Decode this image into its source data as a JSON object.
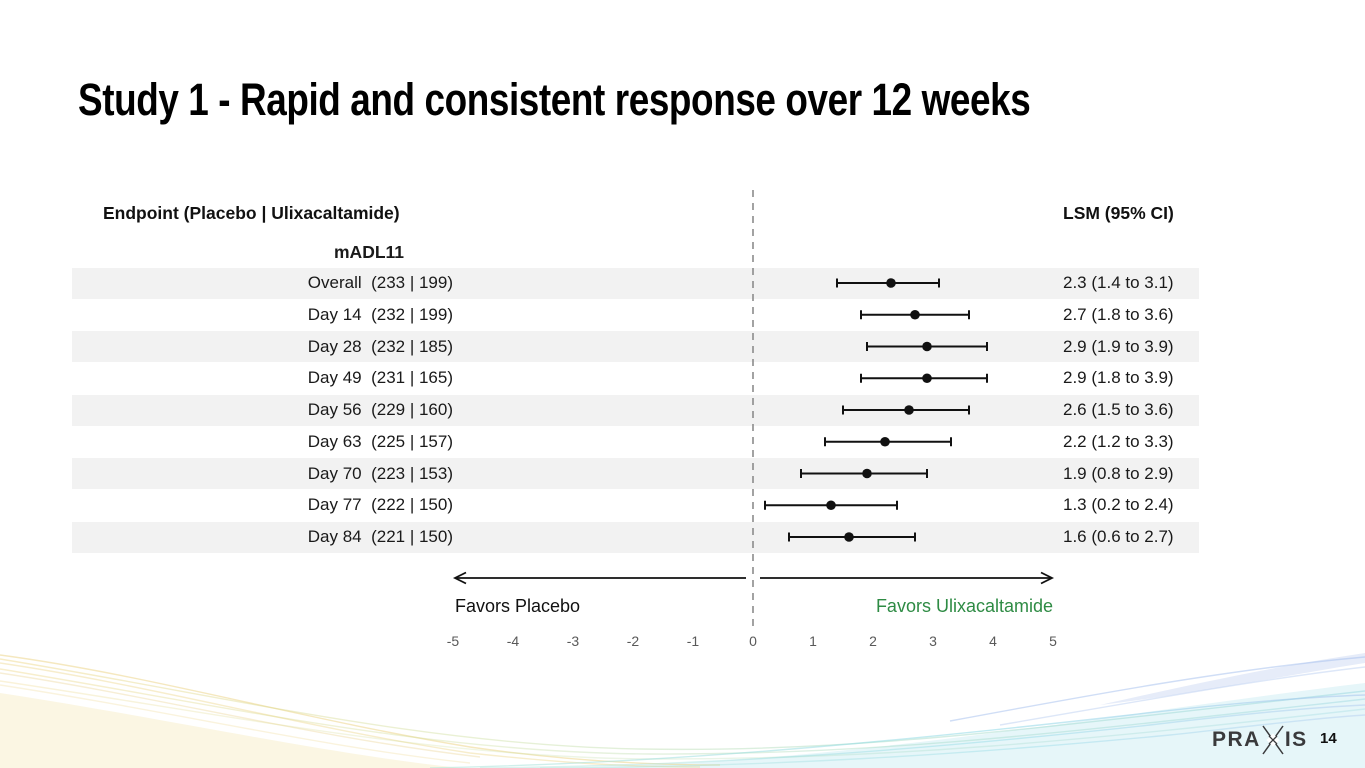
{
  "slide": {
    "title": "Study 1 - Rapid and consistent response over 12 weeks",
    "page_number": "14",
    "logo": {
      "left": "PRA",
      "right": "IS"
    }
  },
  "chart_data": {
    "type": "forest",
    "title": "Study 1 - Rapid and consistent response over 12 weeks",
    "left_header": "Endpoint (Placebo | Ulixacaltamide)",
    "right_header": "LSM (95% CI)",
    "group_label": "mADL11",
    "rows": [
      {
        "label": "Overall",
        "counts": "(233 | 199)",
        "lsm": 2.3,
        "ci_low": 1.4,
        "ci_high": 3.1,
        "ci_text": "2.3 (1.4 to 3.1)"
      },
      {
        "label": "Day 14",
        "counts": "(232 | 199)",
        "lsm": 2.7,
        "ci_low": 1.8,
        "ci_high": 3.6,
        "ci_text": "2.7 (1.8 to 3.6)"
      },
      {
        "label": "Day 28",
        "counts": "(232 | 185)",
        "lsm": 2.9,
        "ci_low": 1.9,
        "ci_high": 3.9,
        "ci_text": "2.9 (1.9 to 3.9)"
      },
      {
        "label": "Day 49",
        "counts": "(231 | 165)",
        "lsm": 2.9,
        "ci_low": 1.8,
        "ci_high": 3.9,
        "ci_text": "2.9 (1.8 to 3.9)"
      },
      {
        "label": "Day 56",
        "counts": "(229 | 160)",
        "lsm": 2.6,
        "ci_low": 1.5,
        "ci_high": 3.6,
        "ci_text": "2.6 (1.5 to 3.6)"
      },
      {
        "label": "Day 63",
        "counts": "(225 | 157)",
        "lsm": 2.2,
        "ci_low": 1.2,
        "ci_high": 3.3,
        "ci_text": "2.2 (1.2 to 3.3)"
      },
      {
        "label": "Day 70",
        "counts": "(223 | 153)",
        "lsm": 1.9,
        "ci_low": 0.8,
        "ci_high": 2.9,
        "ci_text": "1.9 (0.8 to 2.9)"
      },
      {
        "label": "Day 77",
        "counts": "(222 | 150)",
        "lsm": 1.3,
        "ci_low": 0.2,
        "ci_high": 2.4,
        "ci_text": "1.3 (0.2 to 2.4)"
      },
      {
        "label": "Day 84",
        "counts": "(221 | 150)",
        "lsm": 1.6,
        "ci_low": 0.6,
        "ci_high": 2.7,
        "ci_text": "1.6 (0.6 to 2.7)"
      }
    ],
    "axis": {
      "min": -5,
      "max": 5,
      "ticks": [
        -5,
        -4,
        -3,
        -2,
        -1,
        0,
        1,
        2,
        3,
        4,
        5
      ],
      "reference_line": 0,
      "grid": false
    },
    "favors_left_label": "Favors Placebo",
    "favors_right_label": "Favors Ulixacaltamide",
    "favors_right_color": "#2e8b44",
    "marker_color": "#111111",
    "band_color": "#f2f2f2",
    "tick_color": "#595959",
    "reference_line_color": "#8c8c8c"
  }
}
